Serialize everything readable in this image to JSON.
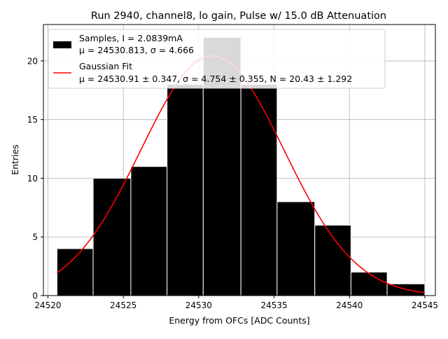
{
  "chart_data": {
    "type": "bar",
    "title": "Run 2940, channel8, lo gain, Pulse w/ 15.0 dB Attenuation",
    "xlabel": "Energy from OFCs [ADC Counts]",
    "ylabel": "Entries",
    "xlim": [
      24519.7,
      24545.7
    ],
    "ylim": [
      0,
      23.1
    ],
    "xticks": [
      24520,
      24525,
      24530,
      24535,
      24540,
      24545
    ],
    "xtick_labels": [
      "24520",
      "24525",
      "24530",
      "24535",
      "24540",
      "24545"
    ],
    "yticks": [
      0,
      5,
      10,
      15,
      20
    ],
    "ytick_labels": [
      "0",
      "5",
      "10",
      "15",
      "20"
    ],
    "grid": true,
    "legend_position": "top-left",
    "bins": [
      {
        "x0": 24520.6,
        "x1": 24523.0,
        "value": 4
      },
      {
        "x0": 24523.0,
        "x1": 24525.5,
        "value": 10
      },
      {
        "x0": 24525.5,
        "x1": 24527.9,
        "value": 11
      },
      {
        "x0": 24527.9,
        "x1": 24530.3,
        "value": 18
      },
      {
        "x0": 24530.3,
        "x1": 24532.8,
        "value": 22
      },
      {
        "x0": 24532.8,
        "x1": 24535.2,
        "value": 18
      },
      {
        "x0": 24535.2,
        "x1": 24537.7,
        "value": 8
      },
      {
        "x0": 24537.7,
        "x1": 24540.1,
        "value": 6
      },
      {
        "x0": 24540.1,
        "x1": 24542.5,
        "value": 2
      },
      {
        "x0": 24542.5,
        "x1": 24545.0,
        "value": 1
      }
    ],
    "series": [
      {
        "name": "Samples",
        "legend_line1": "Samples, I = 2.0839mA",
        "legend_line2": "μ = 24530.813, σ = 4.666",
        "color": "#000000"
      },
      {
        "name": "Gaussian Fit",
        "legend_line1": "Gaussian Fit",
        "legend_line2": "μ = 24530.91 ± 0.347, σ = 4.754 ± 0.355, N = 20.43 ± 1.292",
        "color": "#ff0000",
        "fit": {
          "mu": 24530.91,
          "sigma": 4.754,
          "amplitude": 20.43,
          "x_start": 24520.6,
          "x_end": 24545.0
        }
      }
    ]
  }
}
